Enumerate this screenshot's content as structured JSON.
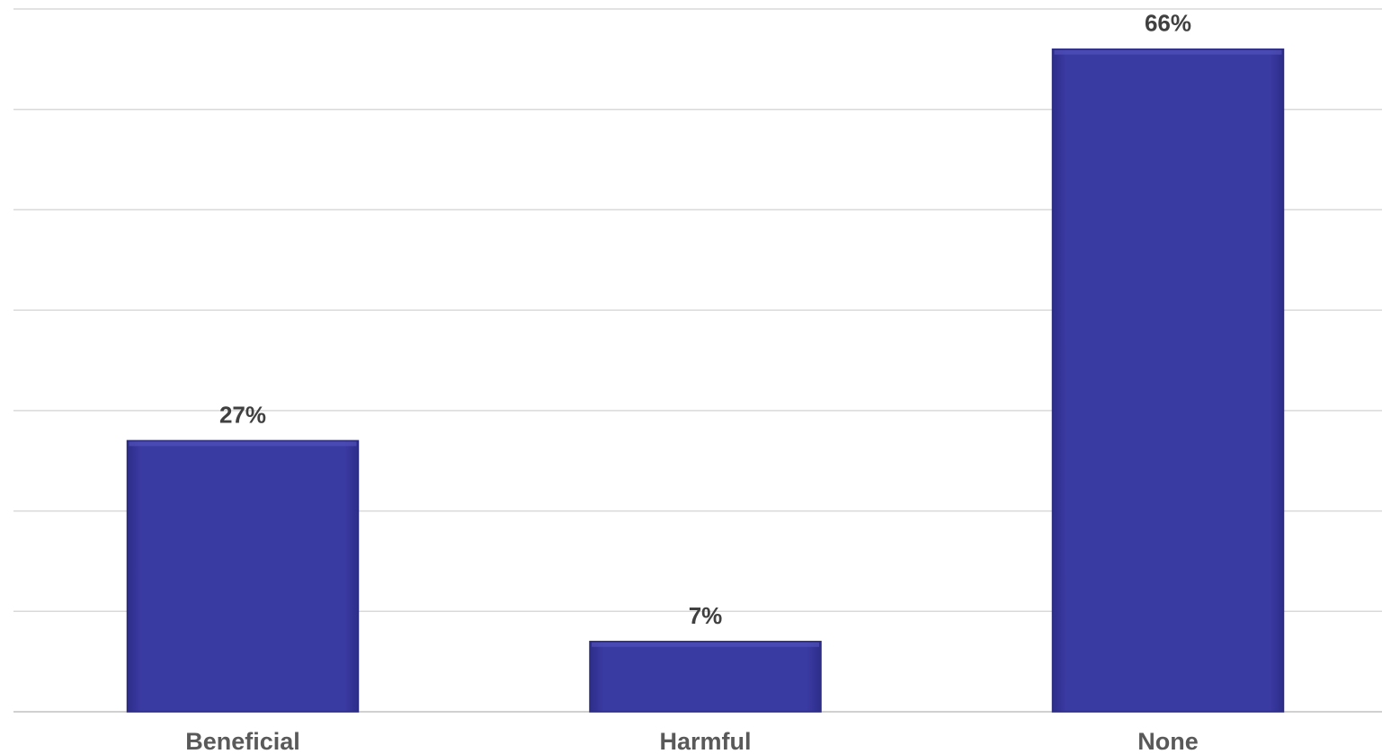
{
  "chart_data": {
    "type": "bar",
    "categories": [
      "Beneficial",
      "Harmful",
      "None"
    ],
    "values": [
      27,
      7,
      66
    ],
    "data_labels": [
      "27%",
      "7%",
      "66%"
    ],
    "title": "",
    "xlabel": "",
    "ylabel": "",
    "ylim": [
      0,
      70
    ],
    "grid": true,
    "legend": "none",
    "colors": {
      "bar": "#3a3aa3",
      "bar_edge": "#2a2a80",
      "grid": "#d9d9d9"
    }
  }
}
